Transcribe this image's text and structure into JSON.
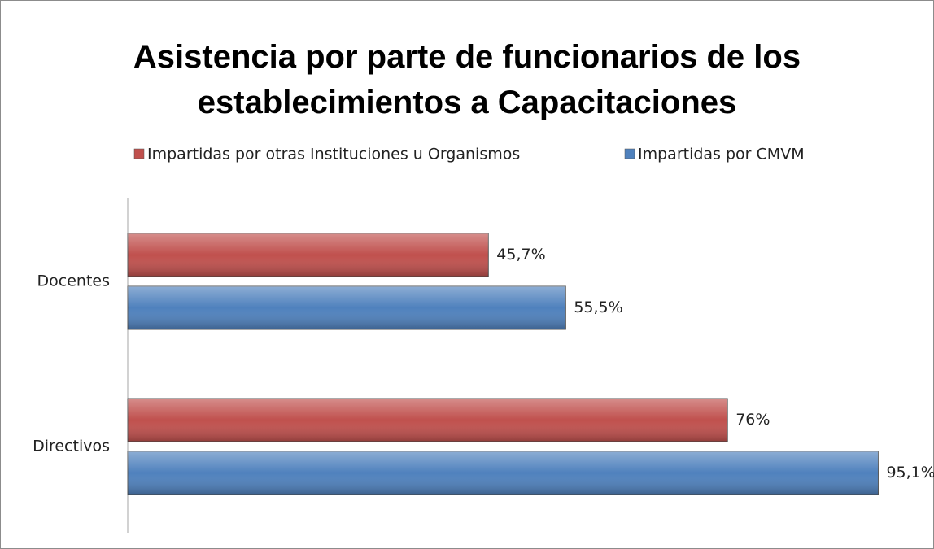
{
  "chart_data": {
    "type": "barh",
    "title": "Asistencia por parte de funcionarios de los establecimientos a Capacitaciones",
    "categories": [
      "Docentes",
      "Directivos"
    ],
    "series": [
      {
        "name": "Impartidas por otras Instituciones u Organismos",
        "color": "#c0504d",
        "values": [
          45.7,
          76
        ],
        "value_labels": [
          "45,7%",
          "76%"
        ]
      },
      {
        "name": "Impartidas por CMVM",
        "color": "#4f81bd",
        "values": [
          55.5,
          95.1
        ],
        "value_labels": [
          "55,5%",
          "95,1%"
        ]
      }
    ]
  }
}
